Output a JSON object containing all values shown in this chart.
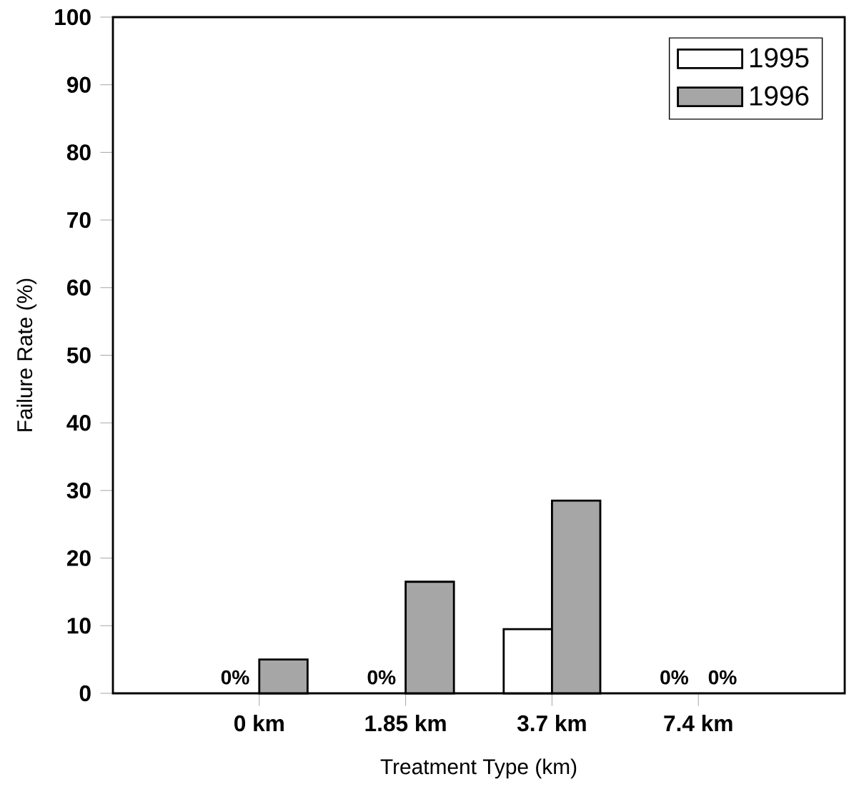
{
  "chart_data": {
    "type": "bar",
    "xlabel": "Treatment Type (km)",
    "ylabel": "Failure Rate (%)",
    "categories": [
      "0 km",
      "1.85 km",
      "3.7 km",
      "7.4 km"
    ],
    "series": [
      {
        "name": "1995",
        "color": "#ffffff",
        "values": [
          0,
          0,
          9.5,
          0
        ],
        "value_labels": [
          "0%",
          "0%",
          null,
          "0%"
        ]
      },
      {
        "name": "1996",
        "color": "#a6a6a6",
        "values": [
          5,
          16.5,
          28.5,
          0
        ],
        "value_labels": [
          null,
          null,
          null,
          "0%"
        ]
      }
    ],
    "ylim": [
      0,
      100
    ],
    "yticks": [
      0,
      10,
      20,
      30,
      40,
      50,
      60,
      70,
      80,
      90,
      100
    ],
    "grid": false,
    "legend": "top right"
  }
}
